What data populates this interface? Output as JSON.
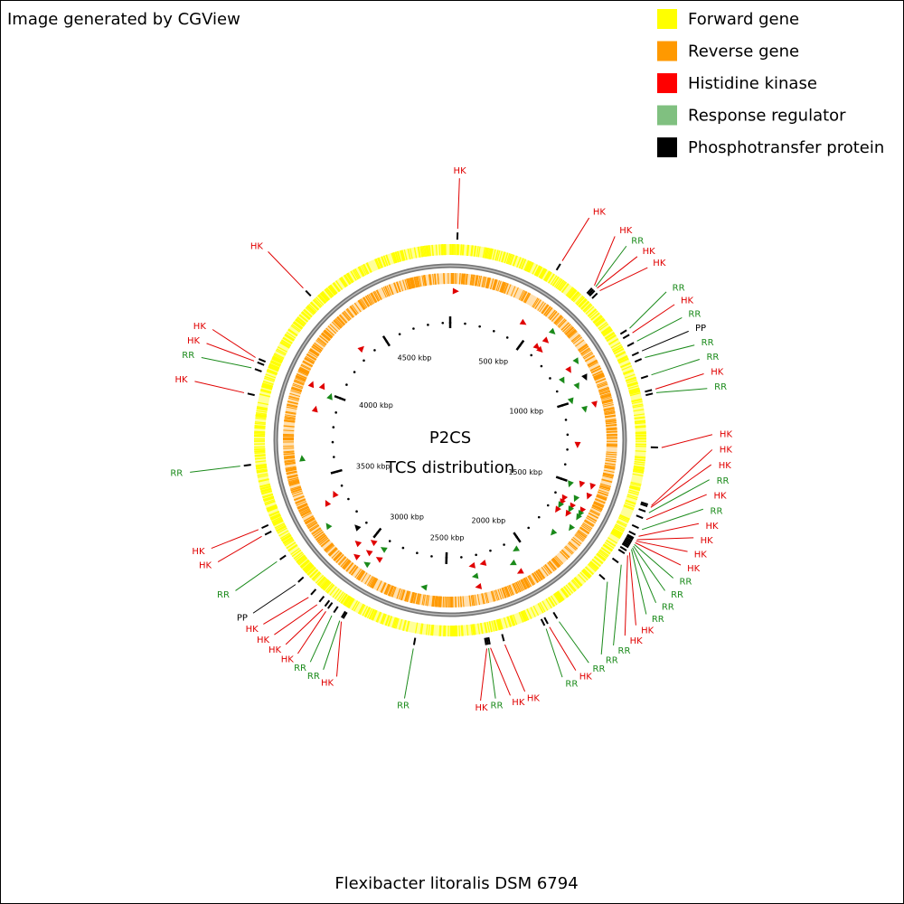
{
  "header": {
    "credit": "Image generated by CGView"
  },
  "legend": [
    {
      "label": "Forward gene",
      "color": "#ffff00"
    },
    {
      "label": "Reverse gene",
      "color": "#ff9900"
    },
    {
      "label": "Histidine kinase",
      "color": "#ff0000"
    },
    {
      "label": "Response regulator",
      "color": "#80c080"
    },
    {
      "label": "Phosphotransfer protein",
      "color": "#000000"
    }
  ],
  "map": {
    "title": "P2CS",
    "subtitle": "TCS distribution",
    "organism": "Flexibacter litoralis DSM 6794",
    "length_kbp": 4950,
    "minor_tick_interval_kbp": 100,
    "ticks": [
      {
        "value": 500,
        "label": "500 kbp"
      },
      {
        "value": 1000,
        "label": "1000 kbp"
      },
      {
        "value": 1500,
        "label": "1500 kbp"
      },
      {
        "value": 2000,
        "label": "2000 kbp"
      },
      {
        "value": 2500,
        "label": "2500 kbp"
      },
      {
        "value": 3000,
        "label": "3000 kbp"
      },
      {
        "value": 3500,
        "label": "3500 kbp"
      },
      {
        "value": 4000,
        "label": "4000 kbp"
      },
      {
        "value": 4500,
        "label": "4500 kbp"
      }
    ],
    "feature_colors": {
      "HK": "#e00000",
      "RR": "#1a8a1a",
      "PP": "#000000"
    },
    "features": [
      {
        "label": "HK",
        "position_kbp": 28
      },
      {
        "label": "HK",
        "position_kbp": 440
      },
      {
        "label": "HK",
        "position_kbp": 591
      },
      {
        "label": "RR",
        "position_kbp": 598
      },
      {
        "label": "HK",
        "position_kbp": 605
      },
      {
        "label": "HK",
        "position_kbp": 619
      },
      {
        "label": "RR",
        "position_kbp": 798
      },
      {
        "label": "HK",
        "position_kbp": 818
      },
      {
        "label": "RR",
        "position_kbp": 853
      },
      {
        "label": "PP",
        "position_kbp": 894
      },
      {
        "label": "RR",
        "position_kbp": 921
      },
      {
        "label": "RR",
        "position_kbp": 990
      },
      {
        "label": "HK",
        "position_kbp": 1045
      },
      {
        "label": "RR",
        "position_kbp": 1059
      },
      {
        "label": "HK",
        "position_kbp": 1265
      },
      {
        "label": "HK",
        "position_kbp": 1485
      },
      {
        "label": "HK",
        "position_kbp": 1492
      },
      {
        "label": "RR",
        "position_kbp": 1513
      },
      {
        "label": "HK",
        "position_kbp": 1540
      },
      {
        "label": "RR",
        "position_kbp": 1581
      },
      {
        "label": "HK",
        "position_kbp": 1609
      },
      {
        "label": "HK",
        "position_kbp": 1623
      },
      {
        "label": "HK",
        "position_kbp": 1629
      },
      {
        "label": "HK",
        "position_kbp": 1636
      },
      {
        "label": "RR",
        "position_kbp": 1643
      },
      {
        "label": "RR",
        "position_kbp": 1650
      },
      {
        "label": "RR",
        "position_kbp": 1657
      },
      {
        "label": "RR",
        "position_kbp": 1664
      },
      {
        "label": "HK",
        "position_kbp": 1678
      },
      {
        "label": "HK",
        "position_kbp": 1691
      },
      {
        "label": "RR",
        "position_kbp": 1733
      },
      {
        "label": "RR",
        "position_kbp": 1815
      },
      {
        "label": "RR",
        "position_kbp": 2049
      },
      {
        "label": "HK",
        "position_kbp": 2090
      },
      {
        "label": "RR",
        "position_kbp": 2104
      },
      {
        "label": "HK",
        "position_kbp": 2269
      },
      {
        "label": "HK",
        "position_kbp": 2324
      },
      {
        "label": "RR",
        "position_kbp": 2331
      },
      {
        "label": "HK",
        "position_kbp": 2338
      },
      {
        "label": "RR",
        "position_kbp": 2613
      },
      {
        "label": "HK",
        "position_kbp": 2901
      },
      {
        "label": "RR",
        "position_kbp": 2908
      },
      {
        "label": "RR",
        "position_kbp": 2943
      },
      {
        "label": "HK",
        "position_kbp": 2970
      },
      {
        "label": "HK",
        "position_kbp": 2984
      },
      {
        "label": "HK",
        "position_kbp": 3011
      },
      {
        "label": "HK",
        "position_kbp": 3053
      },
      {
        "label": "PP",
        "position_kbp": 3121
      },
      {
        "label": "RR",
        "position_kbp": 3231
      },
      {
        "label": "HK",
        "position_kbp": 3341
      },
      {
        "label": "HK",
        "position_kbp": 3369
      },
      {
        "label": "RR",
        "position_kbp": 3616
      },
      {
        "label": "HK",
        "position_kbp": 3891
      },
      {
        "label": "RR",
        "position_kbp": 3988
      },
      {
        "label": "HK",
        "position_kbp": 4015
      },
      {
        "label": "HK",
        "position_kbp": 4029
      },
      {
        "label": "HK",
        "position_kbp": 4345
      }
    ]
  }
}
